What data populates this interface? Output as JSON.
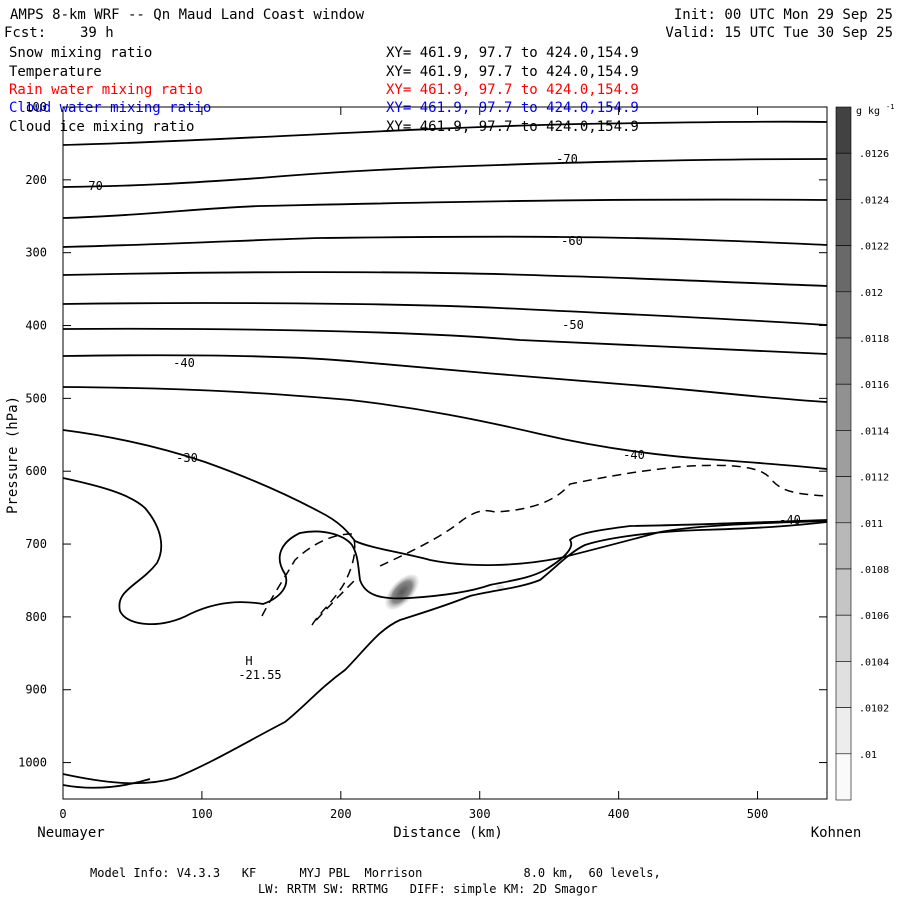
{
  "header": {
    "title": "AMPS 8-km WRF -- Qn Maud Land Coast window",
    "init": "Init: 00 UTC Mon 29 Sep 25",
    "fcst_label": "Fcst:",
    "fcst_value": "39 h",
    "valid": "Valid: 15 UTC Tue 30 Sep 25"
  },
  "fields": [
    {
      "label": "Snow mixing ratio",
      "xy": "XY= 461.9, 97.7 to 424.0,154.9",
      "color": "#000000"
    },
    {
      "label": "Temperature",
      "xy": "XY= 461.9, 97.7 to 424.0,154.9",
      "color": "#000000"
    },
    {
      "label": "Rain water mixing ratio",
      "xy": "XY= 461.9, 97.7 to 424.0,154.9",
      "color": "#ff0000"
    },
    {
      "label": "Cloud water mixing ratio",
      "xy": "XY= 461.9, 97.7 to 424.0,154.9",
      "color": "#0000ff"
    },
    {
      "label": "Cloud ice mixing ratio",
      "xy": "XY= 461.9, 97.7 to 424.0,154.9",
      "color": "#000000"
    }
  ],
  "chart_data": {
    "type": "contour",
    "xlabel": "Distance (km)",
    "ylabel": "Pressure (hPa)",
    "xlim": [
      0,
      550
    ],
    "ylim": [
      1050,
      100
    ],
    "x_ticks": [
      0,
      100,
      200,
      300,
      400,
      500
    ],
    "y_ticks": [
      100,
      200,
      300,
      400,
      500,
      600,
      700,
      800,
      900,
      1000
    ],
    "x_left_label": "Neumayer",
    "x_right_label": "Kohnen",
    "colorbar": {
      "unit": "g kg",
      "unit_exp": "-1",
      "labels": [
        ".0126",
        ".0124",
        ".0122",
        ".012",
        ".0118",
        ".0116",
        ".0114",
        ".0112",
        ".011",
        ".0108",
        ".0106",
        ".0104",
        ".0102",
        ".01"
      ]
    },
    "temperature_contour_labels": [
      {
        "text": "-70",
        "x": 20,
        "p": 205
      },
      {
        "text": "-70",
        "x": 360,
        "p": 152
      },
      {
        "text": "-60",
        "x": 365,
        "p": 286
      },
      {
        "text": "-50",
        "x": 365,
        "p": 392
      },
      {
        "text": "-40",
        "x": 85,
        "p": 447
      },
      {
        "text": "-30",
        "x": 87,
        "p": 533
      },
      {
        "text": "-40",
        "x": 408,
        "p": 578
      },
      {
        "text": "-40",
        "x": 520,
        "p": 665
      }
    ],
    "minimum_marker": {
      "symbol": "H",
      "value": "-21.55",
      "x": 133,
      "p": 870
    },
    "shaded_maximum": {
      "x": 245,
      "p": 775
    }
  },
  "footer": {
    "line1": "Model Info: V4.3.3   KF      MYJ PBL  Morrison              8.0 km,  60 levels,",
    "line2": "LW: RRTM SW: RRTMG   DIFF: simple KM: 2D Smagor"
  }
}
